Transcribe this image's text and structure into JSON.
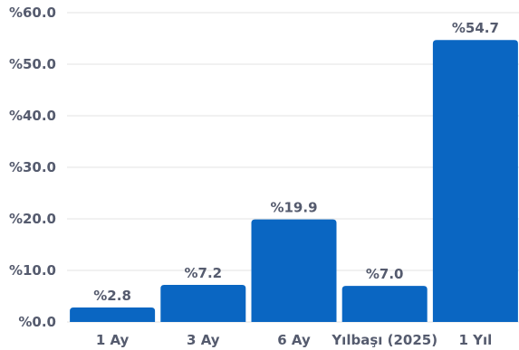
{
  "chart_data": {
    "type": "bar",
    "title": "",
    "xlabel": "",
    "ylabel": "",
    "categories": [
      "1 Ay",
      "3 Ay",
      "6 Ay",
      "Yılbaşı (2025)",
      "1 Yıl"
    ],
    "values": [
      2.8,
      7.2,
      19.9,
      7.0,
      54.7
    ],
    "data_labels": [
      "%2.8",
      "%7.2",
      "%19.9",
      "%7.0",
      "%54.7"
    ],
    "ylim": [
      0,
      60
    ],
    "y_ticks": [
      0,
      10,
      20,
      30,
      40,
      50,
      60
    ],
    "y_tick_labels": [
      "%0.0",
      "%10.0",
      "%20.0",
      "%30.0",
      "%40.0",
      "%50.0",
      "%60.0"
    ],
    "grid": true,
    "legend": "none",
    "colors": {
      "bar": "#0a66c2",
      "grid": "#e3e3e3",
      "text": "#555b6e"
    }
  }
}
